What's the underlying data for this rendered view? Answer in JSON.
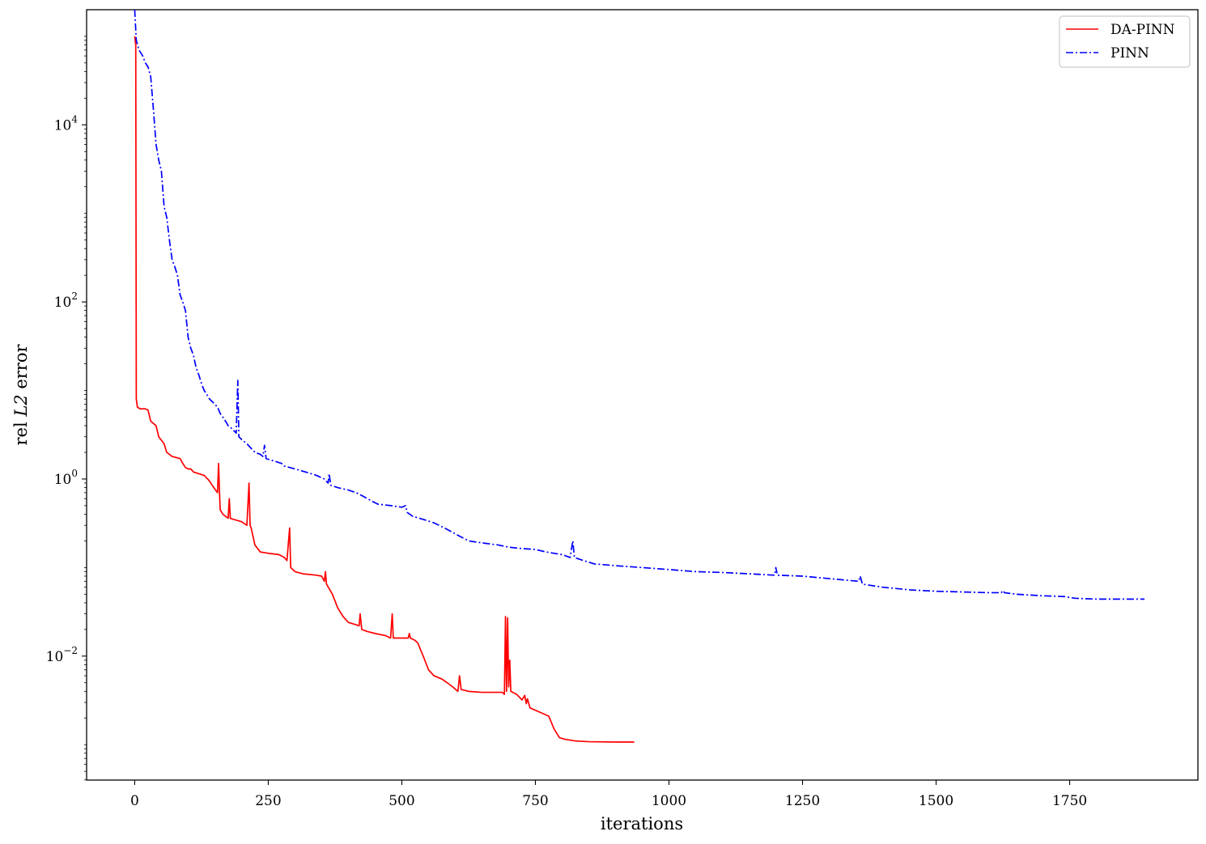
{
  "chart_data": {
    "type": "line",
    "title": "",
    "xlabel": "iterations",
    "ylabel": "rel L2 error",
    "ylabel_parts": {
      "prefix": "rel ",
      "italic": "L2",
      "suffix": " error"
    },
    "xlim": [
      -90,
      1990
    ],
    "ylim_log10": [
      -3.4,
      5.3
    ],
    "y_scale": "log",
    "x_ticks": [
      0,
      250,
      500,
      750,
      1000,
      1250,
      1500,
      1750
    ],
    "x_tick_labels": [
      "0",
      "250",
      "500",
      "750",
      "1000",
      "1250",
      "1500",
      "1750"
    ],
    "y_ticks_exponent": [
      4,
      2,
      0,
      -2
    ],
    "y_tick_labels": [
      {
        "base": "10",
        "exp": "4"
      },
      {
        "base": "10",
        "exp": "2"
      },
      {
        "base": "10",
        "exp": "0"
      },
      {
        "base": "10",
        "exp": "−2"
      }
    ],
    "grid": false,
    "legend_position": "top-right",
    "series": [
      {
        "name": "DA-PINN",
        "color": "#ff0000",
        "style": "solid",
        "points": [
          [
            0,
            100000
          ],
          [
            2,
            80000
          ],
          [
            3,
            8
          ],
          [
            5,
            6.5
          ],
          [
            10,
            6.2
          ],
          [
            20,
            6.2
          ],
          [
            25,
            6
          ],
          [
            30,
            4.5
          ],
          [
            40,
            4
          ],
          [
            45,
            3
          ],
          [
            55,
            2.5
          ],
          [
            60,
            2
          ],
          [
            70,
            1.8
          ],
          [
            85,
            1.7
          ],
          [
            90,
            1.5
          ],
          [
            95,
            1.35
          ],
          [
            100,
            1.3
          ],
          [
            105,
            1.3
          ],
          [
            110,
            1.2
          ],
          [
            130,
            1.1
          ],
          [
            140,
            0.95
          ],
          [
            145,
            0.85
          ],
          [
            155,
            0.7
          ],
          [
            157,
            1.5
          ],
          [
            159,
            0.65
          ],
          [
            160,
            0.45
          ],
          [
            165,
            0.4
          ],
          [
            170,
            0.38
          ],
          [
            175,
            0.36
          ],
          [
            177,
            0.6
          ],
          [
            179,
            0.36
          ],
          [
            185,
            0.35
          ],
          [
            200,
            0.33
          ],
          [
            210,
            0.3
          ],
          [
            214,
            0.9
          ],
          [
            216,
            0.3
          ],
          [
            218,
            0.28
          ],
          [
            225,
            0.18
          ],
          [
            235,
            0.15
          ],
          [
            250,
            0.145
          ],
          [
            270,
            0.14
          ],
          [
            280,
            0.13
          ],
          [
            285,
            0.12
          ],
          [
            290,
            0.28
          ],
          [
            292,
            0.1
          ],
          [
            300,
            0.09
          ],
          [
            315,
            0.085
          ],
          [
            340,
            0.082
          ],
          [
            350,
            0.08
          ],
          [
            355,
            0.07
          ],
          [
            357,
            0.09
          ],
          [
            359,
            0.065
          ],
          [
            370,
            0.05
          ],
          [
            380,
            0.035
          ],
          [
            390,
            0.028
          ],
          [
            400,
            0.024
          ],
          [
            410,
            0.023
          ],
          [
            420,
            0.022
          ],
          [
            422,
            0.03
          ],
          [
            425,
            0.02
          ],
          [
            435,
            0.019
          ],
          [
            450,
            0.018
          ],
          [
            470,
            0.017
          ],
          [
            479,
            0.016
          ],
          [
            482,
            0.03
          ],
          [
            484,
            0.016
          ],
          [
            500,
            0.016
          ],
          [
            512,
            0.016
          ],
          [
            514,
            0.018
          ],
          [
            516,
            0.016
          ],
          [
            525,
            0.015
          ],
          [
            530,
            0.014
          ],
          [
            540,
            0.01
          ],
          [
            550,
            0.007
          ],
          [
            560,
            0.006
          ],
          [
            575,
            0.0055
          ],
          [
            585,
            0.005
          ],
          [
            595,
            0.0045
          ],
          [
            605,
            0.004
          ],
          [
            608,
            0.006
          ],
          [
            611,
            0.0042
          ],
          [
            625,
            0.004
          ],
          [
            650,
            0.0039
          ],
          [
            688,
            0.0039
          ],
          [
            692,
            0.0037
          ],
          [
            694,
            0.028
          ],
          [
            696,
            0.004
          ],
          [
            698,
            0.027
          ],
          [
            700,
            0.0045
          ],
          [
            702,
            0.009
          ],
          [
            704,
            0.004
          ],
          [
            715,
            0.0037
          ],
          [
            725,
            0.0032
          ],
          [
            730,
            0.0036
          ],
          [
            733,
            0.0029
          ],
          [
            735,
            0.0033
          ],
          [
            740,
            0.0026
          ],
          [
            760,
            0.0023
          ],
          [
            775,
            0.0021
          ],
          [
            785,
            0.0015
          ],
          [
            795,
            0.0012
          ],
          [
            805,
            0.00115
          ],
          [
            825,
            0.0011
          ],
          [
            850,
            0.00108
          ],
          [
            900,
            0.00107
          ],
          [
            935,
            0.00107
          ]
        ]
      },
      {
        "name": "PINN",
        "color": "#0000ff",
        "style": "dashdot",
        "points": [
          [
            0,
            200000
          ],
          [
            3,
            90000
          ],
          [
            8,
            70000
          ],
          [
            15,
            60000
          ],
          [
            20,
            50000
          ],
          [
            25,
            45000
          ],
          [
            30,
            35000
          ],
          [
            35,
            15000
          ],
          [
            40,
            6000
          ],
          [
            45,
            4000
          ],
          [
            50,
            3000
          ],
          [
            55,
            1200
          ],
          [
            60,
            900
          ],
          [
            65,
            500
          ],
          [
            70,
            300
          ],
          [
            75,
            250
          ],
          [
            80,
            200
          ],
          [
            85,
            120
          ],
          [
            90,
            100
          ],
          [
            95,
            80
          ],
          [
            100,
            40
          ],
          [
            105,
            30
          ],
          [
            110,
            25
          ],
          [
            115,
            18
          ],
          [
            120,
            15
          ],
          [
            125,
            12
          ],
          [
            130,
            10
          ],
          [
            135,
            9
          ],
          [
            140,
            8
          ],
          [
            145,
            7.5
          ],
          [
            150,
            7
          ],
          [
            155,
            6.5
          ],
          [
            160,
            5.5
          ],
          [
            165,
            5
          ],
          [
            170,
            4.5
          ],
          [
            175,
            4
          ],
          [
            180,
            3.8
          ],
          [
            190,
            3.3
          ],
          [
            193,
            13
          ],
          [
            195,
            3
          ],
          [
            200,
            2.8
          ],
          [
            210,
            2.5
          ],
          [
            225,
            2
          ],
          [
            235,
            1.9
          ],
          [
            240,
            1.8
          ],
          [
            243,
            2.4
          ],
          [
            246,
            1.7
          ],
          [
            260,
            1.6
          ],
          [
            275,
            1.5
          ],
          [
            280,
            1.4
          ],
          [
            290,
            1.35
          ],
          [
            300,
            1.3
          ],
          [
            320,
            1.2
          ],
          [
            340,
            1.1
          ],
          [
            355,
            1
          ],
          [
            362,
            0.9
          ],
          [
            364,
            1.15
          ],
          [
            367,
            0.85
          ],
          [
            380,
            0.8
          ],
          [
            400,
            0.75
          ],
          [
            415,
            0.7
          ],
          [
            425,
            0.65
          ],
          [
            440,
            0.58
          ],
          [
            455,
            0.52
          ],
          [
            480,
            0.5
          ],
          [
            500,
            0.48
          ],
          [
            507,
            0.5
          ],
          [
            510,
            0.42
          ],
          [
            520,
            0.38
          ],
          [
            540,
            0.35
          ],
          [
            560,
            0.32
          ],
          [
            580,
            0.28
          ],
          [
            600,
            0.24
          ],
          [
            625,
            0.2
          ],
          [
            650,
            0.19
          ],
          [
            680,
            0.18
          ],
          [
            700,
            0.17
          ],
          [
            720,
            0.165
          ],
          [
            750,
            0.16
          ],
          [
            770,
            0.15
          ],
          [
            800,
            0.14
          ],
          [
            815,
            0.13
          ],
          [
            820,
            0.2
          ],
          [
            823,
            0.13
          ],
          [
            840,
            0.12
          ],
          [
            860,
            0.11
          ],
          [
            900,
            0.105
          ],
          [
            950,
            0.1
          ],
          [
            1000,
            0.095
          ],
          [
            1050,
            0.09
          ],
          [
            1100,
            0.088
          ],
          [
            1150,
            0.085
          ],
          [
            1198,
            0.082
          ],
          [
            1200,
            0.1
          ],
          [
            1203,
            0.082
          ],
          [
            1250,
            0.08
          ],
          [
            1300,
            0.075
          ],
          [
            1355,
            0.07
          ],
          [
            1358,
            0.08
          ],
          [
            1362,
            0.065
          ],
          [
            1400,
            0.06
          ],
          [
            1450,
            0.056
          ],
          [
            1500,
            0.054
          ],
          [
            1550,
            0.053
          ],
          [
            1600,
            0.052
          ],
          [
            1622,
            0.052
          ],
          [
            1625,
            0.055
          ],
          [
            1628,
            0.052
          ],
          [
            1650,
            0.05
          ],
          [
            1700,
            0.048
          ],
          [
            1740,
            0.047
          ],
          [
            1760,
            0.045
          ],
          [
            1800,
            0.044
          ],
          [
            1850,
            0.044
          ],
          [
            1890,
            0.044
          ]
        ]
      }
    ]
  }
}
